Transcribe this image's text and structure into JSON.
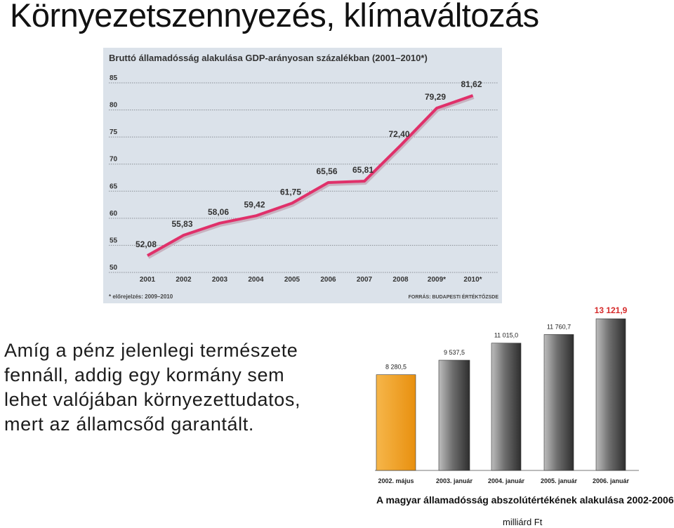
{
  "slide": {
    "title": "Környezetszennyezés, klímaváltozás",
    "body_lines": [
      "Amíg a pénz jelenlegi természete",
      "fennáll, addig egy kormány sem",
      "lehet valójában környezettudatos,",
      "mert az államcsőd garantált."
    ]
  },
  "chart_data": [
    {
      "type": "line",
      "title": "Bruttó államadósság alakulása GDP-arányosan százalékban (2001–2010*)",
      "categories": [
        "2001",
        "2002",
        "2003",
        "2004",
        "2005",
        "2006",
        "2007",
        "2008",
        "2009*",
        "2010*"
      ],
      "series": [
        {
          "values": [
            52.08,
            55.83,
            58.06,
            59.42,
            61.75,
            65.56,
            65.81,
            72.4,
            79.29,
            81.62
          ]
        }
      ],
      "data_labels": [
        "52,08",
        "55,83",
        "58,06",
        "59,42",
        "61,75",
        "65,56",
        "65,81",
        "72,40",
        "79,29",
        "81,62"
      ],
      "y_ticks": [
        "50",
        "55",
        "60",
        "65",
        "70",
        "75",
        "80",
        "85"
      ],
      "ylim": [
        50,
        85
      ],
      "grid": true,
      "footnote": "* előrejelzés: 2009–2010",
      "source": "FORRÁS: BUDAPESTI ÉRTÉKTŐZSDE",
      "line_color": "#e0306a",
      "background_color": "#dbe2ea"
    },
    {
      "type": "bar",
      "categories": [
        "2002. május",
        "2003. január",
        "2004. január",
        "2005. január",
        "2006. január"
      ],
      "values": [
        8280.5,
        9537.5,
        11015.0,
        11760.7,
        13121.9
      ],
      "data_labels": [
        "8 280,5",
        "9 537,5",
        "11 015,0",
        "11 760,7",
        "13 121,9"
      ],
      "highlight_label_color": "#d62a2a",
      "first_bar_color": "#f2a020",
      "bar_color": "#6a6a6a",
      "caption": "A magyar államadósság abszolútértékének alakulása 2002-2006.",
      "unit": "milliárd Ft"
    }
  ]
}
